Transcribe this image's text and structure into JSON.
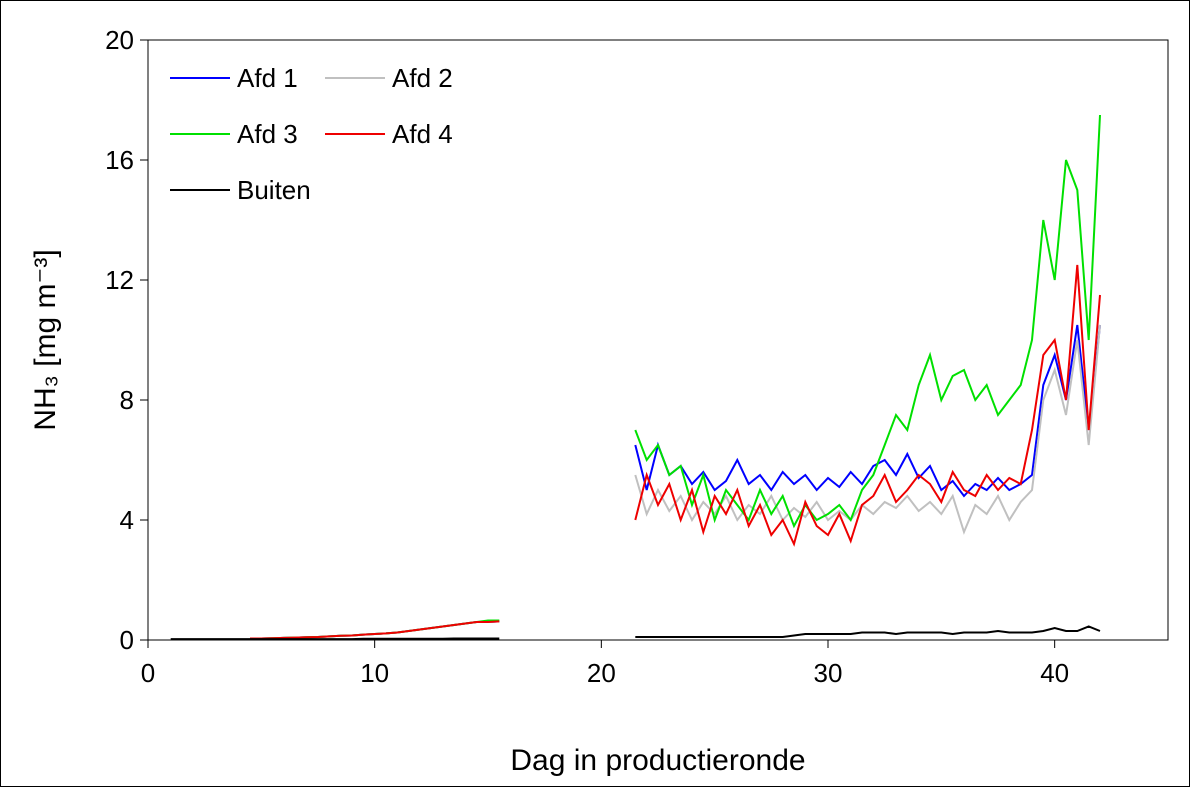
{
  "chart_data": {
    "type": "line",
    "xlabel": "Dag in productieronde",
    "ylabel": "NH₃ [mg m⁻³]",
    "xlim": [
      0,
      45
    ],
    "xticks": [
      0,
      10,
      20,
      30,
      40
    ],
    "ylim": [
      0,
      20
    ],
    "yticks": [
      0,
      4,
      8,
      12,
      16,
      20
    ],
    "legend": "upper left",
    "x": [
      1,
      1.5,
      2,
      2.5,
      3,
      3.5,
      4,
      4.5,
      5,
      5.5,
      6,
      6.5,
      7,
      7.5,
      8,
      8.5,
      9,
      9.5,
      10,
      10.5,
      11,
      11.5,
      12,
      12.5,
      13,
      13.5,
      14,
      14.5,
      15,
      15.5,
      18.5,
      21.5,
      22,
      22.5,
      23,
      23.5,
      24,
      24.5,
      25,
      25.5,
      26,
      26.5,
      27,
      27.5,
      28,
      28.5,
      29,
      29.5,
      30,
      30.5,
      31,
      31.5,
      32,
      32.5,
      33,
      33.5,
      34,
      34.5,
      35,
      35.5,
      36,
      36.5,
      37,
      37.5,
      38,
      38.5,
      39,
      39.5,
      40,
      40.5,
      41,
      41.5,
      42
    ],
    "series": [
      {
        "name": "Afd 1",
        "color": "#0000ff",
        "values": [
          null,
          null,
          null,
          null,
          null,
          null,
          null,
          0.05,
          0.05,
          0.06,
          0.07,
          0.08,
          0.09,
          0.1,
          0.12,
          0.14,
          0.15,
          0.18,
          0.2,
          0.22,
          0.25,
          0.3,
          0.35,
          0.4,
          0.45,
          0.5,
          0.55,
          0.6,
          0.6,
          0.62,
          null,
          6.5,
          5.0,
          6.5,
          5.5,
          5.8,
          5.2,
          5.6,
          5.0,
          5.3,
          6.0,
          5.2,
          5.5,
          5.0,
          5.6,
          5.2,
          5.5,
          5.0,
          5.4,
          5.1,
          5.6,
          5.2,
          5.8,
          6.0,
          5.5,
          6.2,
          5.4,
          5.8,
          5.0,
          5.3,
          4.8,
          5.2,
          5.0,
          5.4,
          5.0,
          5.2,
          5.5,
          8.5,
          9.5,
          8.0,
          10.5,
          7.0,
          10.5
        ]
      },
      {
        "name": "Afd 2",
        "color": "#c0c0c0",
        "values": [
          null,
          null,
          null,
          null,
          null,
          null,
          null,
          0.05,
          0.05,
          0.06,
          0.07,
          0.08,
          0.09,
          0.1,
          0.12,
          0.14,
          0.15,
          0.18,
          0.2,
          0.22,
          0.25,
          0.3,
          0.35,
          0.4,
          0.45,
          0.5,
          0.55,
          0.6,
          0.6,
          0.62,
          null,
          5.5,
          4.2,
          5.0,
          4.3,
          4.8,
          4.0,
          4.6,
          4.2,
          4.8,
          4.0,
          4.5,
          4.2,
          4.8,
          4.0,
          4.4,
          4.1,
          4.6,
          4.0,
          4.3,
          4.0,
          4.5,
          4.2,
          4.6,
          4.4,
          4.8,
          4.3,
          4.6,
          4.2,
          4.8,
          3.6,
          4.5,
          4.2,
          4.8,
          4.0,
          4.6,
          5.0,
          8.0,
          9.0,
          7.5,
          10.0,
          6.5,
          10.5
        ]
      },
      {
        "name": "Afd 3",
        "color": "#00e000",
        "values": [
          null,
          null,
          null,
          null,
          null,
          null,
          null,
          0.05,
          0.05,
          0.06,
          0.07,
          0.08,
          0.09,
          0.1,
          0.12,
          0.14,
          0.15,
          0.18,
          0.2,
          0.22,
          0.25,
          0.3,
          0.35,
          0.4,
          0.45,
          0.5,
          0.55,
          0.6,
          0.65,
          0.65,
          null,
          7.0,
          6.0,
          6.5,
          5.5,
          5.8,
          4.5,
          5.5,
          4.0,
          5.0,
          4.5,
          4.0,
          5.0,
          4.2,
          4.8,
          3.8,
          4.5,
          4.0,
          4.2,
          4.5,
          4.0,
          5.0,
          5.5,
          6.5,
          7.5,
          7.0,
          8.5,
          9.5,
          8.0,
          8.8,
          9.0,
          8.0,
          8.5,
          7.5,
          8.0,
          8.5,
          10.0,
          14.0,
          12.0,
          16.0,
          15.0,
          10.0,
          17.5
        ]
      },
      {
        "name": "Afd 4",
        "color": "#ee0000",
        "values": [
          null,
          null,
          null,
          null,
          null,
          null,
          null,
          0.05,
          0.05,
          0.06,
          0.07,
          0.08,
          0.09,
          0.1,
          0.12,
          0.14,
          0.15,
          0.18,
          0.2,
          0.22,
          0.25,
          0.3,
          0.35,
          0.4,
          0.45,
          0.5,
          0.55,
          0.6,
          0.6,
          0.62,
          null,
          4.0,
          5.5,
          4.5,
          5.2,
          4.0,
          5.0,
          3.6,
          4.8,
          4.2,
          5.0,
          3.8,
          4.5,
          3.5,
          4.0,
          3.2,
          4.6,
          3.8,
          3.5,
          4.2,
          3.3,
          4.5,
          4.8,
          5.5,
          4.6,
          5.0,
          5.5,
          5.2,
          4.6,
          5.6,
          5.0,
          4.8,
          5.5,
          5.0,
          5.4,
          5.2,
          7.0,
          9.5,
          10.0,
          8.0,
          12.5,
          7.0,
          11.5
        ]
      },
      {
        "name": "Buiten",
        "color": "#000000",
        "values": [
          0.03,
          0.03,
          0.03,
          0.03,
          0.03,
          0.03,
          0.03,
          0.03,
          0.03,
          0.03,
          0.03,
          0.03,
          0.03,
          0.03,
          0.03,
          0.03,
          0.03,
          0.04,
          0.04,
          0.04,
          0.04,
          0.04,
          0.04,
          0.04,
          0.04,
          0.05,
          0.05,
          0.05,
          0.05,
          0.05,
          null,
          0.1,
          0.1,
          0.1,
          0.1,
          0.1,
          0.1,
          0.1,
          0.1,
          0.1,
          0.1,
          0.1,
          0.1,
          0.1,
          0.1,
          0.15,
          0.2,
          0.2,
          0.2,
          0.2,
          0.2,
          0.25,
          0.25,
          0.25,
          0.2,
          0.25,
          0.25,
          0.25,
          0.25,
          0.2,
          0.25,
          0.25,
          0.25,
          0.3,
          0.25,
          0.25,
          0.25,
          0.3,
          0.4,
          0.3,
          0.3,
          0.45,
          0.3
        ]
      }
    ]
  }
}
